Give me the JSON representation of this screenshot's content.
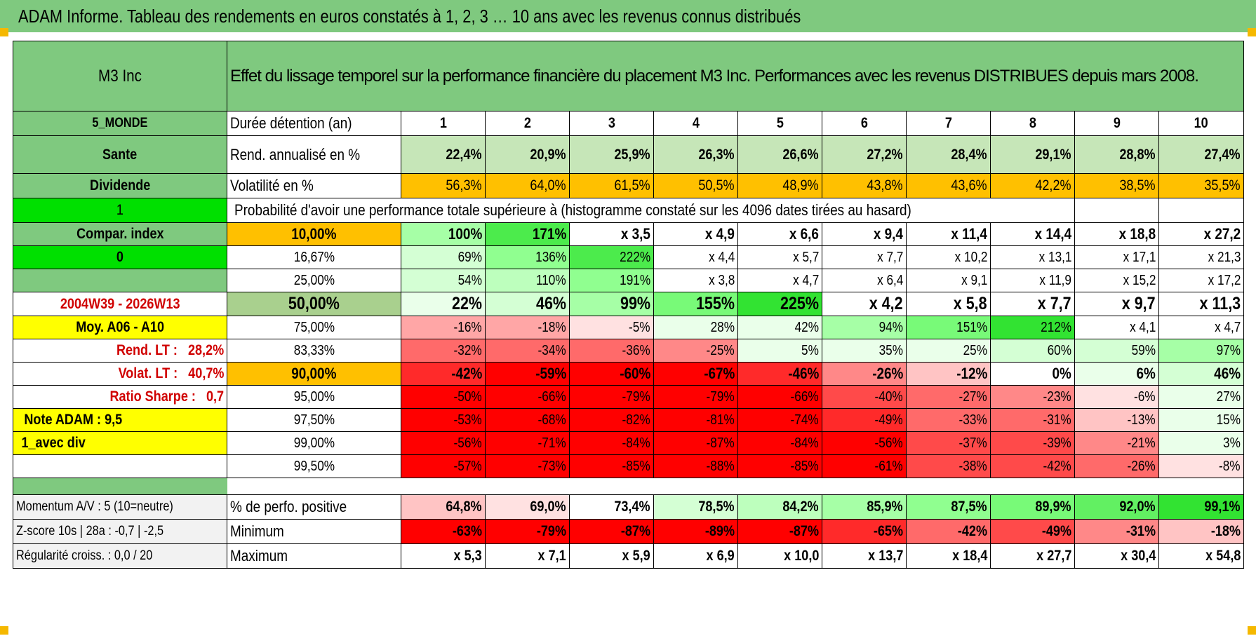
{
  "header": {
    "title": "ADAM Informe. Tableau des rendements en euros constatés à 1, 2, 3 … 10 ans avec les revenus connus distribués"
  },
  "colors": {
    "header_green": "#7fc97f",
    "bright_green": "#00e000",
    "orange": "#ffc000",
    "yellow": "#ffff00",
    "red": "#ff0000",
    "label_red": "#d00000"
  },
  "fund": {
    "name": "M3 Inc",
    "description": "Effet du lissage temporel sur la performance financière du placement M3 Inc. Performances avec les revenus DISTRIBUES depuis mars 2008."
  },
  "side": {
    "zone": "5_MONDE",
    "sector": "Sante",
    "type": "Dividende",
    "flag1": "1",
    "compar_label": "Compar. index",
    "flag0": "0",
    "period": "2004W39 - 2026W13",
    "moy_label": "Moy. A06 - A10",
    "rend_lt_label": "Rend. LT :",
    "rend_lt_value": "28,2%",
    "volat_lt_label": "Volat. LT :",
    "volat_lt_value": "40,7%",
    "sharpe_label": "Ratio Sharpe :",
    "sharpe_value": "0,7",
    "note_adam": "Note ADAM : 9,5",
    "avec_div": "1_avec div",
    "momentum": "Momentum A/V : 5 (10=neutre)",
    "zscore": "Z-score 10s | 28a : -0,7 | -2,5",
    "regularite": "Régularité croiss. : 0,0 / 20"
  },
  "labels": {
    "duree": "Durée détention (an)",
    "rend": "Rend. annualisé en %",
    "volat": "Volatilité en %",
    "proba": "Probabilité d'avoir une performance totale supérieure à (histogramme constaté sur les 4096 dates tirées au hasard)",
    "pos": "% de perfo. positive",
    "min": "Minimum",
    "max": "Maximum"
  },
  "years": [
    "1",
    "2",
    "3",
    "4",
    "5",
    "6",
    "7",
    "8",
    "9",
    "10"
  ],
  "rend": [
    "22,4%",
    "20,9%",
    "25,9%",
    "26,3%",
    "26,6%",
    "27,2%",
    "28,4%",
    "29,1%",
    "28,8%",
    "27,4%"
  ],
  "volat": [
    "56,3%",
    "64,0%",
    "61,5%",
    "50,5%",
    "48,9%",
    "43,8%",
    "43,6%",
    "42,2%",
    "38,5%",
    "35,5%"
  ],
  "percentiles": [
    {
      "p": "10,00%",
      "v": [
        "100%",
        "171%",
        "x 3,5",
        "x 4,9",
        "x 6,6",
        "x 9,4",
        "x 11,4",
        "x 14,4",
        "x 18,8",
        "x 27,2"
      ]
    },
    {
      "p": "16,67%",
      "v": [
        "69%",
        "136%",
        "222%",
        "x 4,4",
        "x 5,7",
        "x 7,7",
        "x 10,2",
        "x 13,1",
        "x 17,1",
        "x 21,3"
      ]
    },
    {
      "p": "25,00%",
      "v": [
        "54%",
        "110%",
        "191%",
        "x 3,8",
        "x 4,7",
        "x 6,4",
        "x 9,1",
        "x 11,9",
        "x 15,2",
        "x 17,2"
      ]
    },
    {
      "p": "50,00%",
      "v": [
        "22%",
        "46%",
        "99%",
        "155%",
        "225%",
        "x 4,2",
        "x 5,8",
        "x 7,7",
        "x 9,7",
        "x 11,3"
      ]
    },
    {
      "p": "75,00%",
      "v": [
        "-16%",
        "-18%",
        "-5%",
        "28%",
        "42%",
        "94%",
        "151%",
        "212%",
        "x 4,1",
        "x 4,7"
      ]
    },
    {
      "p": "83,33%",
      "v": [
        "-32%",
        "-34%",
        "-36%",
        "-25%",
        "5%",
        "35%",
        "25%",
        "60%",
        "59%",
        "97%"
      ]
    },
    {
      "p": "90,00%",
      "v": [
        "-42%",
        "-59%",
        "-60%",
        "-67%",
        "-46%",
        "-26%",
        "-12%",
        "0%",
        "6%",
        "46%"
      ]
    },
    {
      "p": "95,00%",
      "v": [
        "-50%",
        "-66%",
        "-79%",
        "-79%",
        "-66%",
        "-40%",
        "-27%",
        "-23%",
        "-6%",
        "27%"
      ]
    },
    {
      "p": "97,50%",
      "v": [
        "-53%",
        "-68%",
        "-82%",
        "-81%",
        "-74%",
        "-49%",
        "-33%",
        "-31%",
        "-13%",
        "15%"
      ]
    },
    {
      "p": "99,00%",
      "v": [
        "-56%",
        "-71%",
        "-84%",
        "-87%",
        "-84%",
        "-56%",
        "-37%",
        "-39%",
        "-21%",
        "3%"
      ]
    },
    {
      "p": "99,50%",
      "v": [
        "-57%",
        "-73%",
        "-85%",
        "-88%",
        "-85%",
        "-61%",
        "-38%",
        "-42%",
        "-26%",
        "-8%"
      ]
    }
  ],
  "pos": [
    "64,8%",
    "69,0%",
    "73,4%",
    "78,5%",
    "84,2%",
    "85,9%",
    "87,5%",
    "89,9%",
    "92,0%",
    "99,1%"
  ],
  "min": [
    "-63%",
    "-79%",
    "-87%",
    "-89%",
    "-87%",
    "-65%",
    "-42%",
    "-49%",
    "-31%",
    "-18%"
  ],
  "max": [
    "x 5,3",
    "x 7,1",
    "x 5,9",
    "x 6,9",
    "x 10,0",
    "x 13,7",
    "x 18,4",
    "x 27,7",
    "x 30,4",
    "x 54,8"
  ]
}
